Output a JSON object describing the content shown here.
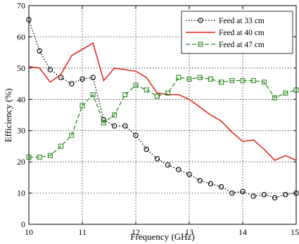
{
  "chart_data": {
    "type": "line",
    "title": "",
    "xlabel": "Frequency (GHz)",
    "ylabel": "Efficiency (%)",
    "xlim": [
      10,
      15
    ],
    "ylim": [
      0,
      70
    ],
    "x_ticks": [
      "10",
      "11",
      "12",
      "13",
      "14",
      "15"
    ],
    "y_ticks": [
      "0",
      "10",
      "20",
      "30",
      "40",
      "50",
      "60",
      "70"
    ],
    "grid": true,
    "legend_position": "top-right",
    "series": [
      {
        "name": "Feed at 33 cm",
        "color": "#000000",
        "line_style": "dotted",
        "marker": "circle",
        "x": [
          10.0,
          10.2,
          10.4,
          10.6,
          10.8,
          11.0,
          11.2,
          11.4,
          11.6,
          11.8,
          12.0,
          12.2,
          12.4,
          12.6,
          12.8,
          13.0,
          13.2,
          13.4,
          13.6,
          13.8,
          14.0,
          14.2,
          14.4,
          14.6,
          14.8,
          15.0
        ],
        "y": [
          65.5,
          55.5,
          49.5,
          47.0,
          45.0,
          46.5,
          47.0,
          33.5,
          31.5,
          31.5,
          28.5,
          24.0,
          21.0,
          19.0,
          17.5,
          16.0,
          14.0,
          13.0,
          12.0,
          10.0,
          10.5,
          9.0,
          9.5,
          8.5,
          9.5,
          10.0
        ]
      },
      {
        "name": "Feed at 40 cm",
        "color": "#e0201b",
        "line_style": "solid",
        "marker": "none",
        "x": [
          10.0,
          10.2,
          10.4,
          10.6,
          10.8,
          11.0,
          11.2,
          11.4,
          11.6,
          11.8,
          12.0,
          12.2,
          12.4,
          12.6,
          12.8,
          13.0,
          13.2,
          13.4,
          13.6,
          13.8,
          14.0,
          14.2,
          14.4,
          14.6,
          14.8,
          15.0
        ],
        "y": [
          50.5,
          50.0,
          45.5,
          48.0,
          54.0,
          56.0,
          58.0,
          46.0,
          50.0,
          49.5,
          49.0,
          47.0,
          42.0,
          41.5,
          41.5,
          40.0,
          37.5,
          35.0,
          33.0,
          29.5,
          26.5,
          27.0,
          24.0,
          20.5,
          22.0,
          20.5
        ]
      },
      {
        "name": "Feed at 47 cm",
        "color": "#2e8b22",
        "line_style": "dashed",
        "marker": "square",
        "x": [
          10.0,
          10.2,
          10.4,
          10.6,
          10.8,
          11.0,
          11.2,
          11.4,
          11.6,
          11.8,
          12.0,
          12.2,
          12.4,
          12.6,
          12.8,
          13.0,
          13.2,
          13.4,
          13.6,
          13.8,
          14.0,
          14.2,
          14.4,
          14.6,
          14.8,
          15.0
        ],
        "y": [
          21.5,
          21.5,
          22.0,
          25.0,
          28.5,
          38.0,
          41.5,
          32.5,
          35.0,
          41.5,
          44.5,
          43.0,
          41.0,
          42.0,
          47.0,
          46.5,
          47.0,
          46.5,
          45.5,
          46.0,
          46.0,
          46.0,
          45.5,
          40.5,
          42.0,
          43.0
        ]
      }
    ]
  }
}
